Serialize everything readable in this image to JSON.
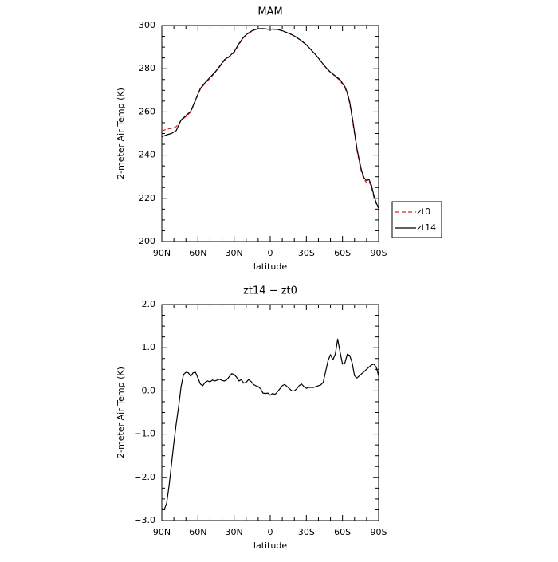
{
  "chart_data": [
    {
      "type": "line",
      "title": "MAM",
      "xlabel": "latitude",
      "ylabel": "2-meter Air Temp (K)",
      "x_ticks": [
        {
          "value": 90,
          "label": "90N"
        },
        {
          "value": 60,
          "label": "60N"
        },
        {
          "value": 30,
          "label": "30N"
        },
        {
          "value": 0,
          "label": "0"
        },
        {
          "value": -30,
          "label": "30S"
        },
        {
          "value": -60,
          "label": "60S"
        },
        {
          "value": -90,
          "label": "90S"
        }
      ],
      "y_ticks": [
        {
          "value": 200,
          "label": "200"
        },
        {
          "value": 220,
          "label": "220"
        },
        {
          "value": 240,
          "label": "240"
        },
        {
          "value": 260,
          "label": "260"
        },
        {
          "value": 280,
          "label": "280"
        },
        {
          "value": 300,
          "label": "300"
        }
      ],
      "xlim": [
        90,
        -90
      ],
      "ylim": [
        200,
        300
      ],
      "grid": false,
      "legend_position": "outside-right-bottom",
      "series": [
        {
          "name": "zt0",
          "color": "#d62728",
          "dash": "dashed",
          "x": [
            90,
            86,
            82,
            78,
            74,
            70,
            66,
            62,
            58,
            54,
            50,
            46,
            42,
            38,
            34,
            30,
            26,
            22,
            18,
            14,
            10,
            6,
            2,
            -2,
            -6,
            -10,
            -14,
            -18,
            -22,
            -26,
            -30,
            -34,
            -38,
            -42,
            -46,
            -50,
            -54,
            -58,
            -62,
            -64,
            -66,
            -68,
            -70,
            -72,
            -74,
            -76,
            -78,
            -80,
            -82,
            -84,
            -86,
            -88,
            -90
          ],
          "y": [
            251.2,
            252.0,
            252.4,
            253.2,
            256.0,
            257.9,
            260.0,
            265.3,
            270.6,
            273.2,
            275.6,
            278.1,
            280.9,
            283.8,
            285.5,
            287.4,
            291.3,
            294.5,
            296.4,
            297.7,
            298.5,
            298.5,
            298.3,
            298.4,
            298.2,
            297.5,
            296.6,
            295.7,
            294.4,
            292.8,
            291.0,
            288.6,
            286.2,
            283.4,
            280.6,
            278.3,
            276.5,
            274.4,
            271.2,
            268.3,
            263.8,
            257.1,
            249.8,
            242.1,
            236.5,
            231.5,
            228.7,
            227.2,
            227.8,
            225.2,
            220.6,
            217.4,
            215.3
          ]
        },
        {
          "name": "zt14",
          "color": "#000000",
          "dash": "solid",
          "x": [
            90,
            86,
            82,
            78,
            74,
            70,
            66,
            62,
            58,
            54,
            50,
            46,
            42,
            38,
            34,
            30,
            26,
            22,
            18,
            14,
            10,
            6,
            2,
            -2,
            -6,
            -10,
            -14,
            -18,
            -22,
            -26,
            -30,
            -34,
            -38,
            -42,
            -46,
            -50,
            -54,
            -58,
            -62,
            -64,
            -66,
            -68,
            -70,
            -72,
            -74,
            -76,
            -78,
            -80,
            -82,
            -84,
            -86,
            -88,
            -90
          ],
          "y": [
            248.5,
            249.4,
            250.0,
            251.4,
            256.3,
            258.3,
            260.3,
            265.6,
            270.9,
            273.6,
            276.0,
            278.3,
            281.2,
            284.2,
            285.7,
            287.8,
            291.6,
            294.7,
            296.6,
            297.9,
            298.5,
            298.6,
            298.3,
            298.3,
            298.2,
            297.6,
            296.7,
            295.8,
            294.5,
            292.9,
            291.1,
            288.7,
            286.3,
            283.5,
            280.7,
            278.4,
            276.7,
            274.9,
            271.7,
            268.9,
            264.6,
            257.9,
            250.6,
            243.0,
            237.4,
            232.4,
            229.4,
            228.2,
            228.7,
            226.2,
            221.4,
            217.9,
            215.5
          ]
        }
      ]
    },
    {
      "type": "line",
      "title": "zt14 − zt0",
      "xlabel": "latitude",
      "ylabel": "2-meter Air Temp (K)",
      "x_ticks": [
        {
          "value": 90,
          "label": "90N"
        },
        {
          "value": 60,
          "label": "60N"
        },
        {
          "value": 30,
          "label": "30N"
        },
        {
          "value": 0,
          "label": "0"
        },
        {
          "value": -30,
          "label": "30S"
        },
        {
          "value": -60,
          "label": "60S"
        },
        {
          "value": -90,
          "label": "90S"
        }
      ],
      "y_ticks": [
        {
          "value": -3.0,
          "label": "−3.0"
        },
        {
          "value": -2.0,
          "label": "−2.0"
        },
        {
          "value": -1.0,
          "label": "−1.0"
        },
        {
          "value": 0.0,
          "label": "0.0"
        },
        {
          "value": 1.0,
          "label": "1.0"
        },
        {
          "value": 2.0,
          "label": "2.0"
        }
      ],
      "xlim": [
        90,
        -90
      ],
      "ylim": [
        -3.0,
        2.0
      ],
      "grid": false,
      "series": [
        {
          "name": "",
          "color": "#000000",
          "dash": "solid",
          "x": [
            90,
            88,
            86,
            84,
            82,
            80,
            78,
            76,
            74,
            72,
            70,
            68,
            66,
            64,
            62,
            60,
            58,
            56,
            54,
            52,
            50,
            48,
            46,
            44,
            42,
            40,
            38,
            36,
            34,
            32,
            30,
            28,
            26,
            24,
            22,
            20,
            18,
            16,
            14,
            12,
            10,
            8,
            6,
            4,
            2,
            0,
            -2,
            -4,
            -6,
            -8,
            -10,
            -12,
            -14,
            -16,
            -18,
            -20,
            -22,
            -24,
            -26,
            -28,
            -30,
            -32,
            -34,
            -36,
            -38,
            -40,
            -42,
            -44,
            -46,
            -48,
            -50,
            -52,
            -54,
            -56,
            -58,
            -60,
            -62,
            -64,
            -66,
            -68,
            -70,
            -72,
            -74,
            -76,
            -78,
            -80,
            -82,
            -84,
            -86,
            -88,
            -90
          ],
          "y": [
            -2.72,
            -2.75,
            -2.6,
            -2.2,
            -1.7,
            -1.2,
            -0.75,
            -0.35,
            0.1,
            0.38,
            0.43,
            0.42,
            0.34,
            0.42,
            0.43,
            0.3,
            0.16,
            0.12,
            0.2,
            0.23,
            0.21,
            0.25,
            0.23,
            0.25,
            0.27,
            0.24,
            0.23,
            0.26,
            0.33,
            0.4,
            0.38,
            0.32,
            0.23,
            0.26,
            0.18,
            0.2,
            0.26,
            0.22,
            0.15,
            0.12,
            0.1,
            0.05,
            -0.05,
            -0.06,
            -0.05,
            -0.1,
            -0.06,
            -0.08,
            -0.02,
            0.05,
            0.12,
            0.15,
            0.1,
            0.05,
            0.0,
            0.0,
            0.05,
            0.12,
            0.16,
            0.1,
            0.06,
            0.08,
            0.08,
            0.08,
            0.1,
            0.12,
            0.14,
            0.2,
            0.45,
            0.7,
            0.84,
            0.72,
            0.85,
            1.2,
            0.9,
            0.62,
            0.65,
            0.85,
            0.82,
            0.65,
            0.35,
            0.3,
            0.35,
            0.4,
            0.45,
            0.5,
            0.55,
            0.6,
            0.62,
            0.55,
            0.35
          ]
        }
      ]
    }
  ]
}
